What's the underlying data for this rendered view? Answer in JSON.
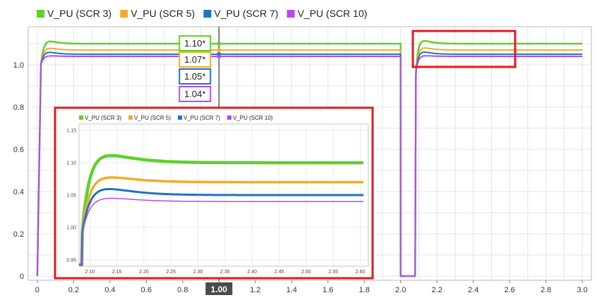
{
  "chart_data": [
    {
      "type": "line",
      "title": "",
      "xlabel": "",
      "ylabel": "",
      "xlim": [
        -0.05,
        3.05
      ],
      "ylim": [
        -0.02,
        1.18
      ],
      "x_ticks": [
        0,
        0.2,
        0.4,
        0.6,
        0.8,
        1.0,
        1.2,
        1.4,
        1.6,
        1.8,
        2.0,
        2.2,
        2.4,
        2.6,
        2.8,
        3.0
      ],
      "x_tick_labels": [
        "0",
        "0.2",
        "0.4",
        "0.6",
        "0.8",
        "1.00",
        "1.2",
        "1.4",
        "1.6",
        "1.8",
        "2.0",
        "2.2",
        "2.4",
        "2.6",
        "2.8",
        "3.0"
      ],
      "y_ticks": [
        0,
        0.2,
        0.4,
        0.6,
        0.8,
        1.0
      ],
      "y_tick_labels": [
        "0",
        "0.2",
        "0.4",
        "0.6",
        "0.8",
        "1.0"
      ],
      "grid": true,
      "legend_position": "top-left",
      "cursor": {
        "x": 1.0,
        "label": "1.00"
      },
      "series": [
        {
          "name": "V_PU (SCR 3)",
          "color": "#5ed12b",
          "steady": 1.1,
          "peak": 1.12,
          "tag": "1.10*"
        },
        {
          "name": "V_PU (SCR 5)",
          "color": "#f0ad29",
          "steady": 1.07,
          "peak": 1.085,
          "tag": "1.07*"
        },
        {
          "name": "V_PU (SCR 7)",
          "color": "#1f73c2",
          "steady": 1.05,
          "peak": 1.065,
          "tag": "1.05*"
        },
        {
          "name": "V_PU (SCR 10)",
          "color": "#b649f2",
          "steady": 1.04,
          "peak": 1.045,
          "tag": "1.04*"
        }
      ],
      "events": {
        "start": 0.0,
        "rise_end": 0.02,
        "fault_start": 2.0,
        "fault_end": 2.08,
        "fault_level": 0.0
      }
    },
    {
      "type": "line",
      "title": "",
      "xlim": [
        2.08,
        2.615
      ],
      "ylim": [
        0.94,
        1.16
      ],
      "x_ticks": [
        2.1,
        2.15,
        2.2,
        2.25,
        2.3,
        2.35,
        2.4,
        2.45,
        2.5,
        2.55,
        2.6
      ],
      "x_tick_labels": [
        "2.10",
        "2.15",
        "2.20",
        "2.25",
        "2.30",
        "2.35",
        "2.40",
        "2.45",
        "2.50",
        "2.55",
        "2.60"
      ],
      "y_ticks": [
        0.95,
        1.0,
        1.05,
        1.1,
        1.15
      ],
      "y_tick_labels": [
        "0.95",
        "1.00",
        "1.05",
        "1.10",
        "1.15"
      ],
      "grid": true,
      "legend_position": "top-left",
      "series": [
        {
          "name": "V_PU (SCR 3)",
          "color": "#5ed12b",
          "steady": 1.1,
          "peak": 1.115
        },
        {
          "name": "V_PU (SCR 5)",
          "color": "#f0ad29",
          "steady": 1.07,
          "peak": 1.08
        },
        {
          "name": "V_PU (SCR 7)",
          "color": "#1f73c2",
          "steady": 1.05,
          "peak": 1.062
        },
        {
          "name": "V_PU (SCR 10)",
          "color": "#b649f2",
          "steady": 1.04,
          "peak": 1.047
        }
      ]
    }
  ]
}
